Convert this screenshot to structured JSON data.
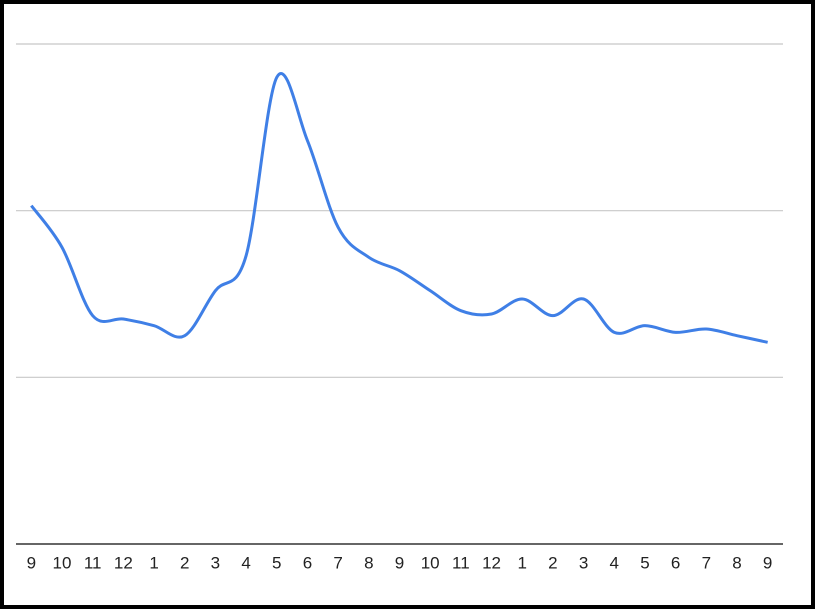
{
  "chart_data": {
    "type": "line",
    "categories": [
      "9",
      "10",
      "11",
      "12",
      "1",
      "2",
      "3",
      "4",
      "5",
      "6",
      "7",
      "8",
      "9",
      "10",
      "11",
      "12",
      "1",
      "2",
      "3",
      "4",
      "5",
      "6",
      "7",
      "8",
      "9"
    ],
    "series": [
      {
        "color": "#3f7fe6",
        "values": [
          2.03,
          1.78,
          1.37,
          1.35,
          1.31,
          1.25,
          1.52,
          1.73,
          2.8,
          2.42,
          1.9,
          1.72,
          1.64,
          1.52,
          1.4,
          1.38,
          1.47,
          1.37,
          1.47,
          1.27,
          1.31,
          1.27,
          1.29,
          1.25,
          1.21
        ]
      }
    ],
    "ylim": [
      0,
      3
    ],
    "yticks": [
      1,
      2,
      3
    ],
    "grid": true
  }
}
